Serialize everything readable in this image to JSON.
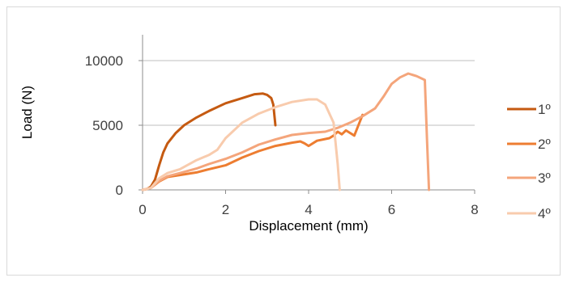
{
  "chart_data": {
    "type": "line",
    "title": "",
    "xlabel": "Displacement (mm)",
    "ylabel": "Load (N)",
    "xlim": [
      0,
      8
    ],
    "ylim": [
      0,
      12000
    ],
    "x_ticks": [
      0,
      2,
      4,
      6,
      8
    ],
    "y_ticks": [
      0,
      5000,
      10000
    ],
    "x_tick_labels": [
      "0",
      "2",
      "4",
      "6",
      "8"
    ],
    "y_tick_labels": [
      "0",
      "5000",
      "10000"
    ],
    "grid": "horizontal",
    "legend_position": "right",
    "series": [
      {
        "name": "1º",
        "color": "#c55a11",
        "points": [
          [
            0,
            0
          ],
          [
            0.1,
            60
          ],
          [
            0.2,
            250
          ],
          [
            0.3,
            800
          ],
          [
            0.4,
            1900
          ],
          [
            0.5,
            2900
          ],
          [
            0.6,
            3600
          ],
          [
            0.8,
            4400
          ],
          [
            1.0,
            5000
          ],
          [
            1.3,
            5600
          ],
          [
            1.6,
            6100
          ],
          [
            2.0,
            6700
          ],
          [
            2.4,
            7100
          ],
          [
            2.7,
            7400
          ],
          [
            2.9,
            7450
          ],
          [
            3.0,
            7350
          ],
          [
            3.1,
            7100
          ],
          [
            3.15,
            6600
          ],
          [
            3.2,
            5000
          ]
        ]
      },
      {
        "name": "2º",
        "color": "#ed7d31",
        "points": [
          [
            0,
            0
          ],
          [
            0.2,
            150
          ],
          [
            0.4,
            650
          ],
          [
            0.6,
            1000
          ],
          [
            0.9,
            1150
          ],
          [
            1.3,
            1350
          ],
          [
            1.6,
            1600
          ],
          [
            2.0,
            1900
          ],
          [
            2.4,
            2500
          ],
          [
            2.8,
            3000
          ],
          [
            3.2,
            3400
          ],
          [
            3.6,
            3650
          ],
          [
            3.8,
            3750
          ],
          [
            3.9,
            3600
          ],
          [
            4.0,
            3400
          ],
          [
            4.2,
            3800
          ],
          [
            4.5,
            4000
          ],
          [
            4.6,
            4200
          ],
          [
            4.7,
            4500
          ],
          [
            4.8,
            4300
          ],
          [
            4.9,
            4600
          ],
          [
            5.0,
            4400
          ],
          [
            5.1,
            4200
          ],
          [
            5.2,
            5000
          ],
          [
            5.3,
            5800
          ]
        ]
      },
      {
        "name": "3º",
        "color": "#f4a57b",
        "points": [
          [
            0,
            0
          ],
          [
            0.2,
            150
          ],
          [
            0.4,
            700
          ],
          [
            0.6,
            1050
          ],
          [
            0.9,
            1300
          ],
          [
            1.3,
            1650
          ],
          [
            1.6,
            2000
          ],
          [
            2.0,
            2400
          ],
          [
            2.4,
            2900
          ],
          [
            2.8,
            3500
          ],
          [
            3.2,
            3900
          ],
          [
            3.6,
            4250
          ],
          [
            4.0,
            4400
          ],
          [
            4.4,
            4500
          ],
          [
            4.7,
            4800
          ],
          [
            5.0,
            5200
          ],
          [
            5.3,
            5700
          ],
          [
            5.6,
            6300
          ],
          [
            5.8,
            7200
          ],
          [
            6.0,
            8200
          ],
          [
            6.2,
            8700
          ],
          [
            6.4,
            9000
          ],
          [
            6.6,
            8800
          ],
          [
            6.8,
            8500
          ],
          [
            6.85,
            4000
          ],
          [
            6.9,
            0
          ]
        ]
      },
      {
        "name": "4º",
        "color": "#f8cbad",
        "points": [
          [
            0,
            0
          ],
          [
            0.2,
            150
          ],
          [
            0.4,
            900
          ],
          [
            0.6,
            1300
          ],
          [
            0.9,
            1600
          ],
          [
            1.3,
            2300
          ],
          [
            1.6,
            2700
          ],
          [
            1.8,
            3100
          ],
          [
            2.0,
            4000
          ],
          [
            2.4,
            5200
          ],
          [
            2.8,
            5900
          ],
          [
            3.2,
            6400
          ],
          [
            3.6,
            6800
          ],
          [
            4.0,
            7000
          ],
          [
            4.2,
            7000
          ],
          [
            4.4,
            6600
          ],
          [
            4.6,
            5200
          ],
          [
            4.7,
            2000
          ],
          [
            4.75,
            0
          ]
        ]
      }
    ]
  }
}
